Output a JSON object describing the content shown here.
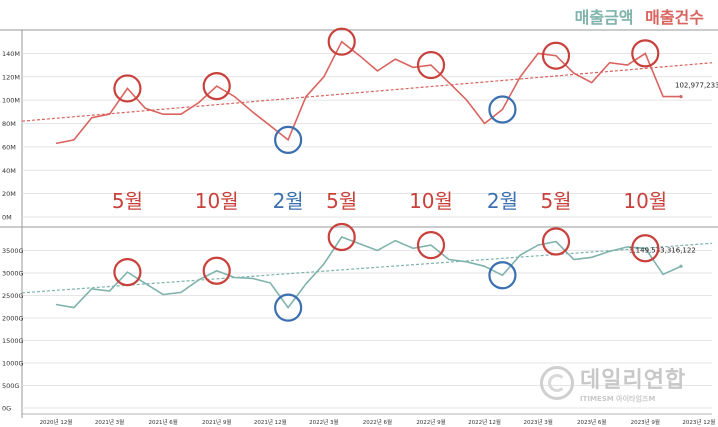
{
  "legend": {
    "amount_label": "매출금액",
    "count_label": "매출건수",
    "amount_color": "#7fb3ac",
    "count_color": "#d9645f"
  },
  "watermark": {
    "title": "데일리연합",
    "subtitle": "ITIMESM 아이타임즈M"
  },
  "chart_data": [
    {
      "type": "line",
      "name": "매출건수",
      "color": "#d9645f",
      "ylim": [
        0,
        160
      ],
      "yticks": [
        {
          "value": 0,
          "label": "0M"
        },
        {
          "value": 20,
          "label": "20M"
        },
        {
          "value": 40,
          "label": "40M"
        },
        {
          "value": 60,
          "label": "60M"
        },
        {
          "value": 80,
          "label": "80M"
        },
        {
          "value": 100,
          "label": "100M"
        },
        {
          "value": 120,
          "label": "120M"
        },
        {
          "value": 140,
          "label": "140M"
        }
      ],
      "values": [
        63,
        66,
        85,
        88,
        110,
        93,
        88,
        88,
        98,
        112,
        103,
        90,
        78,
        66,
        103,
        120,
        150,
        138,
        125,
        135,
        128,
        130,
        115,
        100,
        80,
        92,
        120,
        140,
        138,
        123,
        115,
        132,
        130,
        140,
        103,
        103
      ],
      "trend": [
        82,
        132
      ],
      "end_label": "102,977,233",
      "annotations": [
        {
          "index": 4,
          "label": "5월",
          "color": "red"
        },
        {
          "index": 9,
          "label": "10월",
          "color": "red"
        },
        {
          "index": 13,
          "label": "2월",
          "color": "blue"
        },
        {
          "index": 16,
          "label": "5월",
          "color": "red"
        },
        {
          "index": 21,
          "label": "10월",
          "color": "red"
        },
        {
          "index": 25,
          "label": "2월",
          "color": "blue"
        },
        {
          "index": 28,
          "label": "5월",
          "color": "red"
        },
        {
          "index": 33,
          "label": "10월",
          "color": "red"
        }
      ]
    },
    {
      "type": "line",
      "name": "매출금액",
      "color": "#7fb3ac",
      "ylim": [
        0,
        4000
      ],
      "yticks": [
        {
          "value": 0,
          "label": "0G"
        },
        {
          "value": 500,
          "label": "500G"
        },
        {
          "value": 1000,
          "label": "1000G"
        },
        {
          "value": 1500,
          "label": "1500G"
        },
        {
          "value": 2000,
          "label": "2000G"
        },
        {
          "value": 2500,
          "label": "2500G"
        },
        {
          "value": 3000,
          "label": "3000G"
        },
        {
          "value": 3500,
          "label": "3500G"
        }
      ],
      "x_labels": [
        "2020년 12월",
        "2021년 3월",
        "2021년 6월",
        "2021년 9월",
        "2021년 12월",
        "2022년 3월",
        "2022년 6월",
        "2022년 9월",
        "2022년 12월",
        "2023년 3월",
        "2023년 6월",
        "2023년 9월",
        "2023년 12월"
      ],
      "values": [
        2300,
        2230,
        2650,
        2600,
        3020,
        2770,
        2520,
        2570,
        2850,
        3050,
        2900,
        2880,
        2780,
        2230,
        2760,
        3200,
        3800,
        3650,
        3500,
        3720,
        3550,
        3620,
        3300,
        3250,
        3150,
        2950,
        3400,
        3620,
        3700,
        3300,
        3350,
        3480,
        3580,
        3550,
        2970,
        3150
      ],
      "trend": [
        2560,
        3660
      ],
      "end_label": "3,149,533,316,122",
      "annotations": [
        {
          "index": 4,
          "color": "red"
        },
        {
          "index": 9,
          "color": "red"
        },
        {
          "index": 13,
          "color": "blue"
        },
        {
          "index": 16,
          "color": "red"
        },
        {
          "index": 21,
          "color": "red"
        },
        {
          "index": 25,
          "color": "blue"
        },
        {
          "index": 28,
          "color": "red"
        },
        {
          "index": 33,
          "color": "red"
        }
      ]
    }
  ]
}
